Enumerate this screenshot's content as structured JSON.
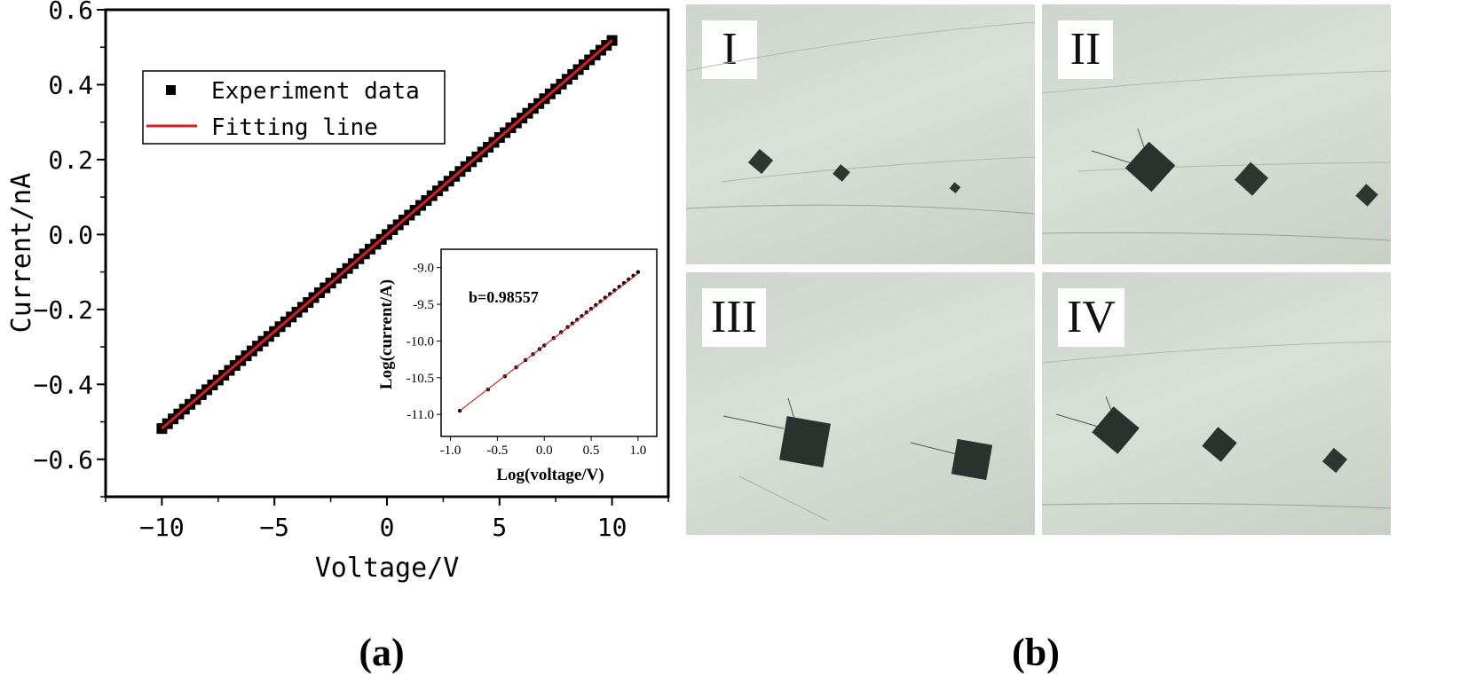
{
  "chart_data": [
    {
      "type": "scatter",
      "title": "",
      "xlabel": "Voltage/V",
      "ylabel": "Current/nA",
      "xlim": [
        -12.5,
        12.5
      ],
      "ylim": [
        -0.7,
        0.6
      ],
      "xticks": [
        "−10",
        "−5",
        "0",
        "5",
        "10"
      ],
      "xtick_values": [
        -10,
        -5,
        0,
        5,
        10
      ],
      "yticks": [
        "−0.6",
        "−0.4",
        "−0.2",
        "0.0",
        "0.2",
        "0.4",
        "0.6"
      ],
      "ytick_values": [
        -0.6,
        -0.4,
        -0.2,
        0.0,
        0.2,
        0.4,
        0.6
      ],
      "legend_position": "top-left",
      "series": [
        {
          "name": "Experiment data",
          "marker": "square",
          "color": "#000000",
          "x_range": [
            -10,
            10
          ],
          "x_step": 0.25,
          "slope": 0.0518,
          "intercept": 0.0
        },
        {
          "name": "Fitting line",
          "marker": "line",
          "color": "#e31a1c",
          "x": [
            -10,
            10
          ],
          "y": [
            -0.518,
            0.518
          ]
        }
      ],
      "grid": false
    },
    {
      "type": "scatter",
      "title": "",
      "xlabel": "Log(voltage/V)",
      "ylabel": "Log(current/A)",
      "xlim": [
        -1.1,
        1.2
      ],
      "ylim": [
        -11.3,
        -8.75
      ],
      "xticks": [
        "-1.0",
        "-0.5",
        "0.0",
        "0.5",
        "1.0"
      ],
      "xtick_values": [
        -1.0,
        -0.5,
        0.0,
        0.5,
        1.0
      ],
      "yticks": [
        "-11.0",
        "-10.5",
        "-10.0",
        "-9.5",
        "-9.0"
      ],
      "ytick_values": [
        -11.0,
        -10.5,
        -10.0,
        -9.5,
        -9.0
      ],
      "annotation": "b=0.98557",
      "series": [
        {
          "marker": "dot",
          "color": "#000000",
          "x": [
            -0.9,
            -0.6,
            -0.42,
            -0.3,
            -0.2,
            -0.12,
            -0.05,
            0.0,
            0.1,
            0.18,
            0.25,
            0.3,
            0.35,
            0.4,
            0.45,
            0.5,
            0.55,
            0.6,
            0.65,
            0.7,
            0.75,
            0.8,
            0.85,
            0.9,
            0.95,
            1.0
          ],
          "y": [
            -10.95,
            -10.66,
            -10.48,
            -10.36,
            -10.26,
            -10.18,
            -10.11,
            -10.06,
            -9.96,
            -9.88,
            -9.81,
            -9.76,
            -9.71,
            -9.66,
            -9.61,
            -9.56,
            -9.51,
            -9.46,
            -9.41,
            -9.36,
            -9.31,
            -9.26,
            -9.21,
            -9.16,
            -9.11,
            -9.06
          ]
        },
        {
          "marker": "line",
          "color": "#e31a1c",
          "x": [
            -0.9,
            1.0
          ],
          "y": [
            -10.95,
            -9.08
          ]
        }
      ],
      "grid": false
    }
  ],
  "figure": {
    "panel_a_label": "(a)",
    "panel_b_label": "(b)",
    "photos": [
      {
        "label": "I"
      },
      {
        "label": "II"
      },
      {
        "label": "III"
      },
      {
        "label": "IV"
      }
    ]
  }
}
